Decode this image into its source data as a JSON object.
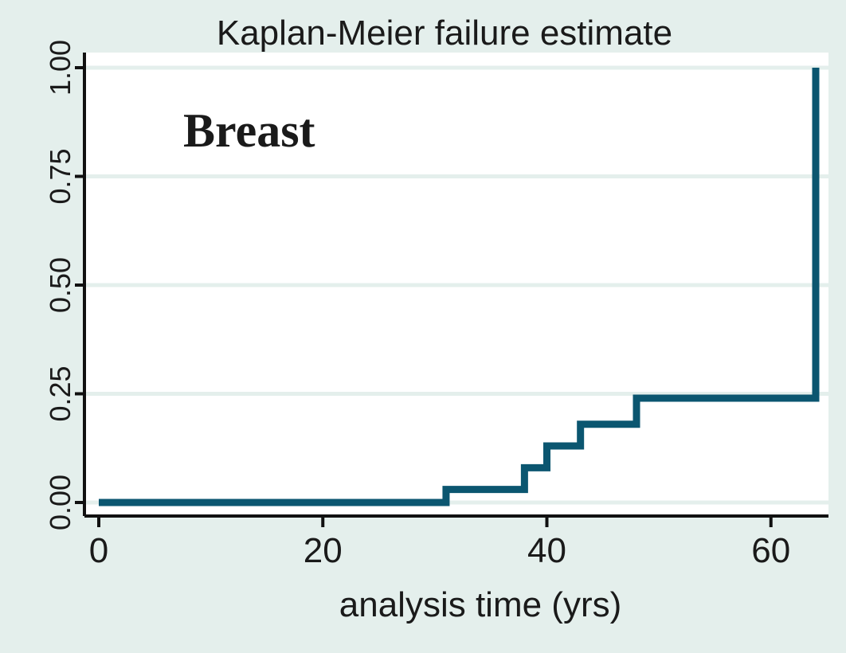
{
  "chart_data": {
    "type": "line",
    "step": true,
    "title": "Kaplan-Meier failure estimate",
    "annotation": "Breast",
    "xlabel": "analysis time (yrs)",
    "ylabel": "",
    "xlim": [
      0,
      64
    ],
    "ylim": [
      0,
      1
    ],
    "xticks": [
      0,
      20,
      40,
      60
    ],
    "xtick_labels": [
      "0",
      "20",
      "40",
      "60"
    ],
    "yticks": [
      0,
      0.25,
      0.5,
      0.75,
      1
    ],
    "ytick_labels": [
      "0.00",
      "0.25",
      "0.50",
      "0.75",
      "1.00"
    ],
    "grid": true,
    "series": [
      {
        "x": [
          0,
          31,
          38,
          40,
          43,
          48,
          64
        ],
        "y": [
          0,
          0.03,
          0.08,
          0.13,
          0.18,
          0.24,
          1.0
        ]
      }
    ],
    "colors": {
      "line": "#0b5670",
      "background": "#e4efec",
      "plot_background": "#ffffff",
      "grid": "#e4efec",
      "axis": "#111111"
    }
  }
}
